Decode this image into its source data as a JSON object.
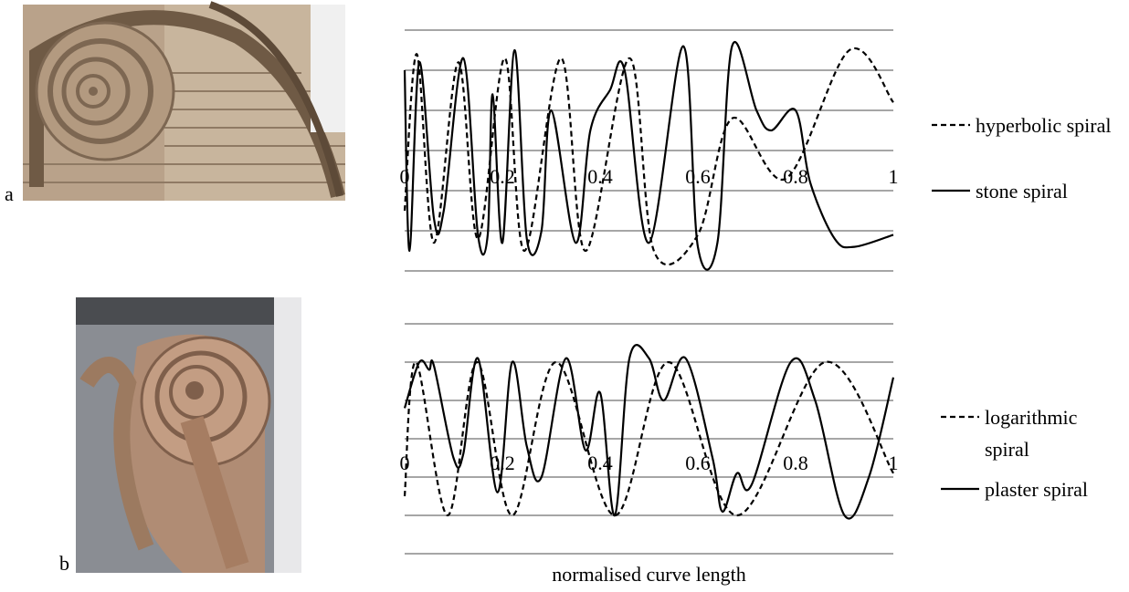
{
  "panel_labels": [
    "a",
    "b"
  ],
  "chart_data": [
    {
      "type": "line",
      "xlim": [
        0,
        1
      ],
      "xticks": [
        0,
        0.2,
        0.4,
        0.6,
        0.8,
        1
      ],
      "ylim": [
        -3,
        3
      ],
      "yticks": [
        -3,
        -2,
        -1,
        0,
        1,
        2,
        3
      ],
      "grid": true,
      "series": [
        {
          "name": "hyperbolic spiral",
          "color": "#000000",
          "line_style": "dashed",
          "x": [
            0,
            0.025,
            0.06,
            0.11,
            0.15,
            0.205,
            0.245,
            0.32,
            0.37,
            0.46,
            0.51,
            0.6,
            0.67,
            0.78,
            0.91,
            1
          ],
          "values": [
            -1.5,
            2.4,
            -2.3,
            2.2,
            -2.2,
            2.3,
            -2.5,
            2.3,
            -2.5,
            2.3,
            -2.5,
            -2.1,
            0.8,
            -0.7,
            2.5,
            1.2
          ]
        },
        {
          "name": "stone spiral",
          "color": "#000000",
          "line_style": "solid",
          "x": [
            0,
            0.01,
            0.03,
            0.06,
            0.08,
            0.12,
            0.15,
            0.17,
            0.18,
            0.2,
            0.225,
            0.25,
            0.28,
            0.3,
            0.35,
            0.38,
            0.42,
            0.45,
            0.5,
            0.57,
            0.6,
            0.64,
            0.67,
            0.72,
            0.75,
            0.8,
            0.83,
            0.88,
            0.92,
            1
          ],
          "values": [
            2.0,
            -2.5,
            2.2,
            -1.7,
            -1.5,
            2.3,
            -2.1,
            -2.1,
            1.4,
            -2.3,
            2.5,
            -2.2,
            -2.0,
            1.0,
            -2.3,
            0.5,
            1.5,
            2.0,
            -2.3,
            2.6,
            -2.4,
            -2.3,
            2.6,
            1.0,
            0.5,
            1.0,
            -0.8,
            -2.2,
            -2.4,
            -2.1
          ]
        }
      ]
    },
    {
      "type": "line",
      "xlabel": "normalised curve length",
      "xlim": [
        0,
        1
      ],
      "xticks": [
        0,
        0.2,
        0.4,
        0.6,
        0.8,
        1
      ],
      "ylim": [
        -3,
        3
      ],
      "yticks": [
        -3,
        -2,
        -1,
        0,
        1,
        2,
        3
      ],
      "grid": true,
      "series": [
        {
          "name": "logarithmic spiral",
          "color": "#000000",
          "line_style": "dashed",
          "x": [
            0,
            0.023,
            0.088,
            0.148,
            0.22,
            0.31,
            0.43,
            0.54,
            0.68,
            0.86,
            1
          ],
          "values": [
            -1.5,
            2.0,
            -2.0,
            2.0,
            -2.0,
            2.0,
            -2.0,
            2.0,
            -2.0,
            2.0,
            -0.9
          ]
        },
        {
          "name": "plaster spiral",
          "color": "#000000",
          "line_style": "solid",
          "x": [
            0,
            0.03,
            0.05,
            0.06,
            0.1,
            0.12,
            0.15,
            0.19,
            0.22,
            0.25,
            0.28,
            0.33,
            0.37,
            0.4,
            0.43,
            0.46,
            0.5,
            0.53,
            0.575,
            0.63,
            0.65,
            0.68,
            0.71,
            0.79,
            0.84,
            0.9,
            0.95,
            1
          ],
          "values": [
            0.8,
            2.0,
            1.8,
            1.9,
            -0.5,
            -0.4,
            2.1,
            -1.4,
            2.0,
            -0.2,
            -1.0,
            2.1,
            -0.3,
            1.2,
            -2.0,
            2.1,
            2.1,
            1.0,
            2.1,
            -0.5,
            -1.9,
            -0.9,
            -1.2,
            2.0,
            1.0,
            -2.0,
            -1.0,
            1.6
          ]
        }
      ]
    }
  ]
}
